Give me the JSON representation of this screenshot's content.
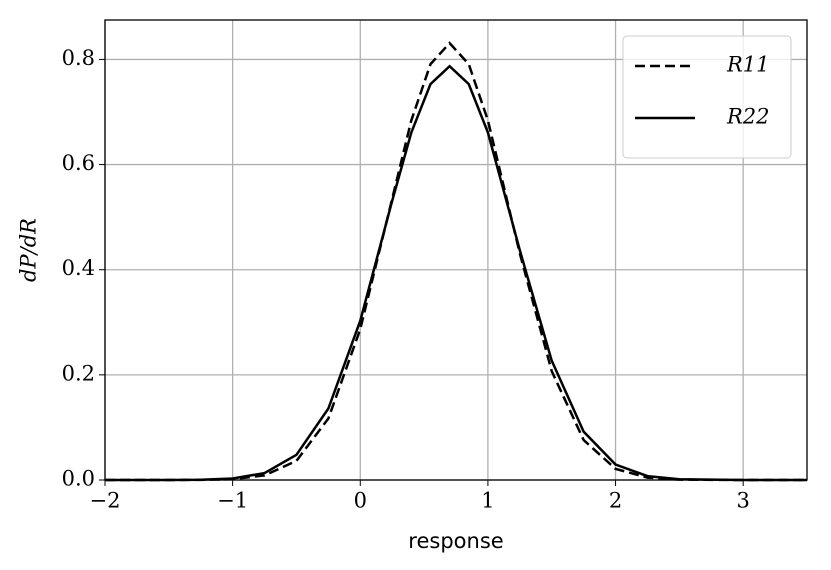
{
  "chart_data": {
    "type": "line",
    "x_label": "response",
    "y_label": "dP/dR",
    "x": [
      -2,
      -1.5,
      -1.25,
      -1,
      -0.75,
      -0.5,
      -0.25,
      0,
      0.25,
      0.4,
      0.55,
      0.7,
      0.85,
      1,
      1.25,
      1.5,
      1.75,
      2,
      2.25,
      2.5,
      3,
      3.5
    ],
    "series": [
      {
        "name": "R11",
        "color": "#000000",
        "linestyle": "dashed",
        "values": [
          0,
          0,
          0.0002,
          0.0016,
          0.0087,
          0.0365,
          0.117,
          0.287,
          0.535,
          0.684,
          0.791,
          0.831,
          0.791,
          0.684,
          0.431,
          0.207,
          0.076,
          0.0212,
          0.0045,
          0.0007,
          0,
          0
        ]
      },
      {
        "name": "R22",
        "color": "#000000",
        "linestyle": "solid",
        "values": [
          0,
          0.0001,
          0.0005,
          0.0028,
          0.0132,
          0.0479,
          0.136,
          0.303,
          0.531,
          0.661,
          0.753,
          0.787,
          0.753,
          0.661,
          0.437,
          0.227,
          0.092,
          0.0294,
          0.0074,
          0.0014,
          0,
          0
        ]
      }
    ],
    "xlim": [
      -2,
      3.5
    ],
    "ylim": [
      0,
      0.875
    ],
    "xticks": [
      {
        "value": -2,
        "label": "−2"
      },
      {
        "value": -1,
        "label": "−1"
      },
      0,
      1,
      2,
      3
    ],
    "yticks": [
      {
        "value": 0,
        "label": "0.0"
      },
      0.2,
      0.4,
      0.6,
      0.8
    ],
    "grid": true,
    "legend": "upper right"
  }
}
